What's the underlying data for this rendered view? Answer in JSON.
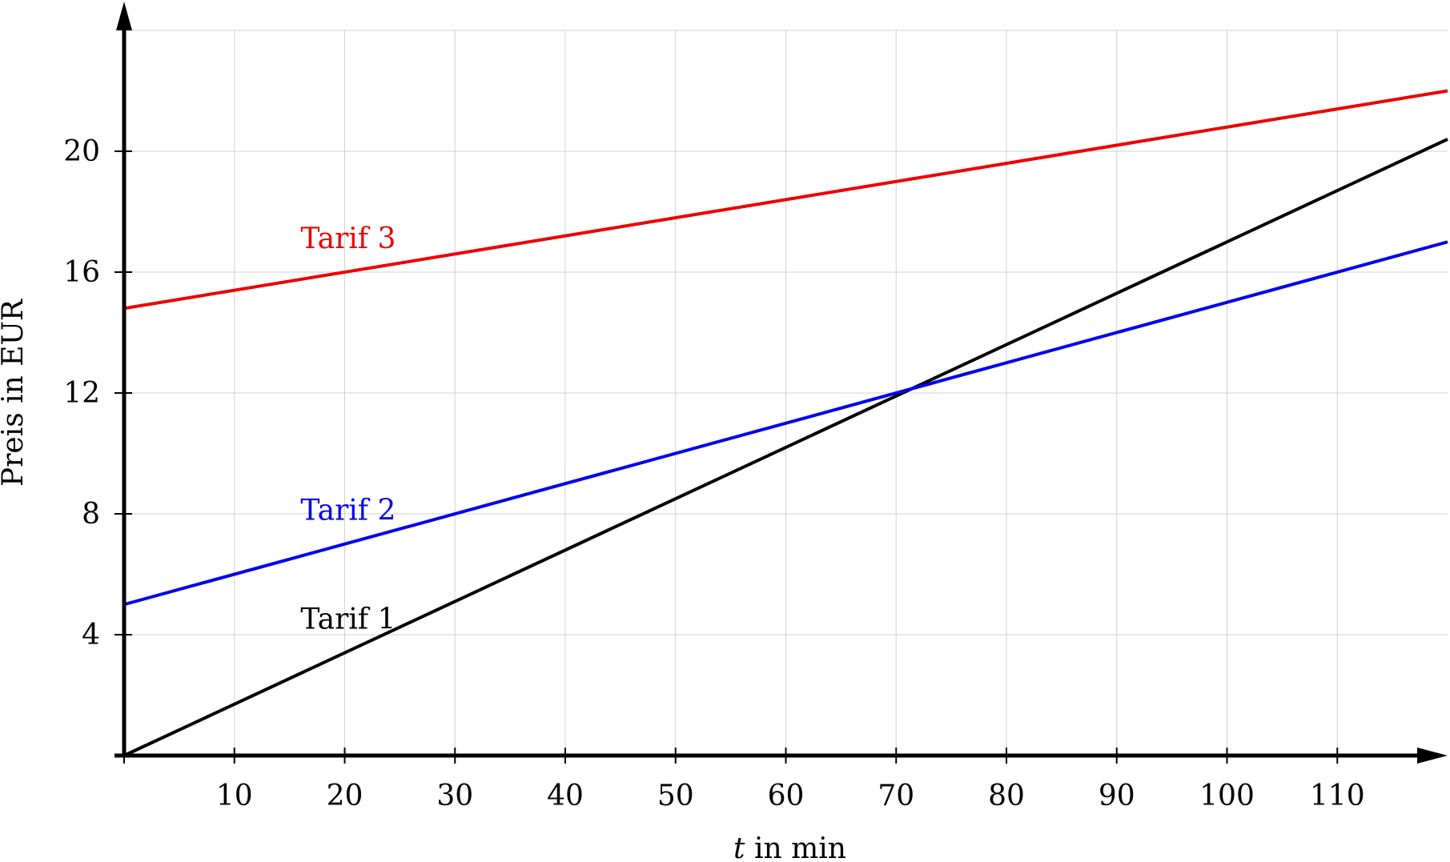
{
  "chart_data": {
    "type": "line",
    "title": "",
    "xlabel_var": "t",
    "xlabel_rest": " in min",
    "ylabel": "Preis in EUR",
    "xlim": [
      0,
      120
    ],
    "ylim": [
      0,
      24
    ],
    "xticks": [
      10,
      20,
      30,
      40,
      50,
      60,
      70,
      80,
      90,
      100,
      110
    ],
    "yticks": [
      4,
      8,
      12,
      16,
      20
    ],
    "xtick_labels": [
      "10",
      "20",
      "30",
      "40",
      "50",
      "60",
      "70",
      "80",
      "90",
      "100",
      "110"
    ],
    "ytick_labels": [
      "4",
      "8",
      "12",
      "16",
      "20"
    ],
    "grid": true,
    "series": [
      {
        "name": "Tarif 1",
        "color": "#000000",
        "x": [
          0,
          120
        ],
        "y": [
          0,
          20.4
        ],
        "label_at": [
          16,
          4.2
        ]
      },
      {
        "name": "Tarif 2",
        "color": "#0000ee",
        "x": [
          0,
          120
        ],
        "y": [
          5,
          17
        ],
        "label_at": [
          16,
          7.8
        ]
      },
      {
        "name": "Tarif 3",
        "color": "#ee0000",
        "x": [
          0,
          120
        ],
        "y": [
          14.8,
          22
        ],
        "label_at": [
          16,
          16.8
        ]
      }
    ]
  }
}
